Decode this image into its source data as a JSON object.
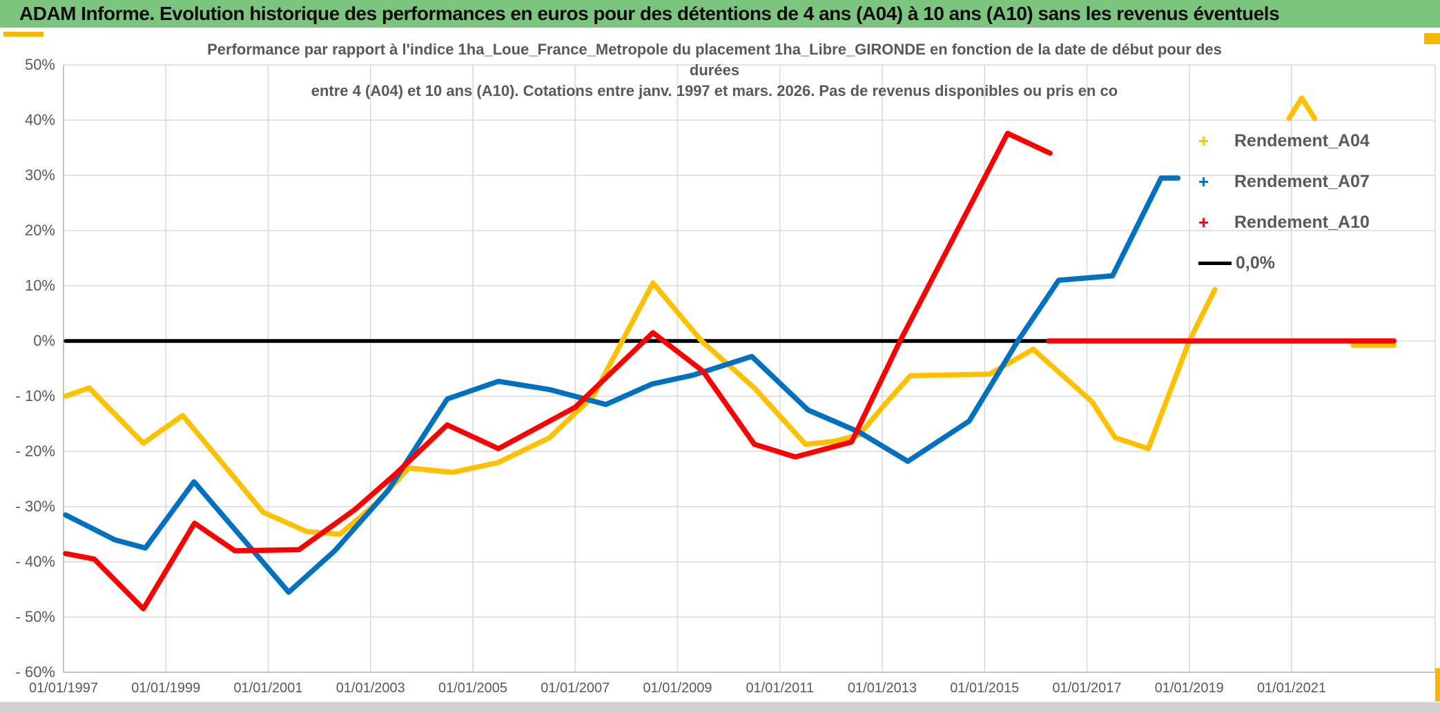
{
  "header": {
    "title": "ADAM Informe. Evolution historique des performances en euros pour des détentions de 4 ans (A04) à 10 ans (A10) sans les revenus éventuels"
  },
  "ui": {
    "header_bg": "#7cc57e",
    "text_gray": "#595959",
    "grid_color": "#d9d9d9",
    "axis_color": "#bfbfbf",
    "accent_orange": "#f5b800",
    "band_gray": "#cfcfcf"
  },
  "legend": {
    "items": [
      {
        "label": "Rendement_A04",
        "marker": "plus",
        "color": "#FFC000"
      },
      {
        "label": "Rendement_A07",
        "marker": "plus",
        "color": "#0070C0"
      },
      {
        "label": "Rendement_A10",
        "marker": "plus",
        "color": "#FF0000"
      },
      {
        "label": "0,0%",
        "marker": "line",
        "color": "#000000"
      }
    ]
  },
  "chart_data": {
    "type": "line",
    "title_lines": [
      "Performance par rapport à l'indice 1ha_Loue_France_Metropole  du placement 1ha_Libre_GIRONDE en fonction de la date de début pour des",
      "durées",
      "entre 4 (A04) et 10 ans (A10). Cotations entre janv. 1997 et mars. 2026. Pas de revenus disponibles ou pris en co"
    ],
    "xlabel": "",
    "ylabel": "",
    "x_tick_years": [
      1997,
      1999,
      2001,
      2003,
      2005,
      2007,
      2009,
      2011,
      2013,
      2015,
      2017,
      2019,
      2021
    ],
    "x_tick_labels": [
      "01/01/1997",
      "01/01/1999",
      "01/01/2001",
      "01/01/2003",
      "01/01/2005",
      "01/01/2007",
      "01/01/2009",
      "01/01/2011",
      "01/01/2013",
      "01/01/2015",
      "01/01/2017",
      "01/01/2019",
      "01/01/2021"
    ],
    "y_ticks": [
      50,
      40,
      30,
      20,
      10,
      0,
      -10,
      -20,
      -30,
      -40,
      -50,
      -60
    ],
    "y_tick_labels": [
      "50%",
      "40%",
      "30%",
      "20%",
      "10%",
      "0%",
      "- 10%",
      "- 20%",
      "- 30%",
      "- 40%",
      "- 50%",
      "- 60%"
    ],
    "x_range_years": [
      1997.0,
      2023.9
    ],
    "ylim": [
      -60,
      50
    ],
    "grid": true,
    "legend_position": "inside-right",
    "series": [
      {
        "name": "Rendement_A04",
        "color": "#FFC000",
        "draw_order": 1,
        "segments": [
          [
            [
              1997.04,
              -10
            ],
            [
              1997.5,
              -8.5
            ],
            [
              1998.56,
              -18.5
            ],
            [
              1999.33,
              -13.5
            ],
            [
              2000.9,
              -31
            ],
            [
              2001.75,
              -34.5
            ],
            [
              2002.4,
              -35
            ],
            [
              2003.1,
              -29.5
            ],
            [
              2003.75,
              -23
            ],
            [
              2004.6,
              -23.8
            ],
            [
              2005.5,
              -22
            ],
            [
              2006.5,
              -17.5
            ],
            [
              2007.35,
              -10
            ],
            [
              2008.52,
              10.5
            ],
            [
              2009.47,
              0
            ],
            [
              2010.5,
              -8.5
            ],
            [
              2011.5,
              -18.7
            ],
            [
              2012.05,
              -18.2
            ],
            [
              2012.55,
              -17
            ],
            [
              2013.05,
              -11.5
            ],
            [
              2013.55,
              -6.3
            ],
            [
              2015.1,
              -6
            ],
            [
              2015.95,
              -1.5
            ],
            [
              2017.1,
              -11
            ],
            [
              2017.55,
              -17.5
            ],
            [
              2018.2,
              -19.5
            ],
            [
              2019.0,
              0
            ],
            [
              2019.5,
              9.3
            ]
          ],
          [
            [
              2020.95,
              40.3
            ],
            [
              2021.2,
              44
            ],
            [
              2021.45,
              40.3
            ]
          ],
          [
            [
              2022.2,
              -0.8
            ],
            [
              2023.0,
              -0.8
            ]
          ]
        ]
      },
      {
        "name": "Rendement_A07",
        "color": "#0070C0",
        "draw_order": 2,
        "segments": [
          [
            [
              1997.04,
              -31.5
            ],
            [
              1998.0,
              -36
            ],
            [
              1998.6,
              -37.5
            ],
            [
              1999.55,
              -25.5
            ],
            [
              2001.4,
              -45.5
            ],
            [
              2002.3,
              -38
            ],
            [
              2003.35,
              -27
            ],
            [
              2004.5,
              -10.5
            ],
            [
              2005.5,
              -7.3
            ],
            [
              2006.5,
              -8.8
            ],
            [
              2007.6,
              -11.5
            ],
            [
              2008.5,
              -7.8
            ],
            [
              2009.3,
              -6.2
            ],
            [
              2010.45,
              -2.8
            ],
            [
              2011.55,
              -12.5
            ],
            [
              2012.55,
              -16.5
            ],
            [
              2013.5,
              -21.8
            ],
            [
              2014.7,
              -14.5
            ],
            [
              2015.65,
              0
            ],
            [
              2016.45,
              11
            ],
            [
              2017.5,
              11.8
            ],
            [
              2018.45,
              29.5
            ],
            [
              2018.78,
              29.5
            ]
          ]
        ]
      },
      {
        "name": "Rendement_A10",
        "color": "#FF0000",
        "draw_order": 3,
        "segments": [
          [
            [
              1997.04,
              -38.5
            ],
            [
              1997.6,
              -39.5
            ],
            [
              1998.56,
              -48.5
            ],
            [
              1999.56,
              -33
            ],
            [
              2000.35,
              -38
            ],
            [
              2001.6,
              -37.8
            ],
            [
              2002.7,
              -30.5
            ],
            [
              2003.5,
              -24
            ],
            [
              2004.5,
              -15.2
            ],
            [
              2005.5,
              -19.5
            ],
            [
              2007.0,
              -12
            ],
            [
              2008.52,
              1.5
            ],
            [
              2009.5,
              -5.5
            ],
            [
              2010.5,
              -18.7
            ],
            [
              2011.3,
              -21
            ],
            [
              2012.4,
              -18.3
            ],
            [
              2013.35,
              0
            ],
            [
              2015.45,
              37.6
            ],
            [
              2016.28,
              34
            ]
          ],
          [
            [
              2016.25,
              0
            ],
            [
              2023.0,
              0
            ]
          ]
        ]
      },
      {
        "name": "0,0%",
        "color": "#000000",
        "draw_order": 0,
        "segments": [
          [
            [
              1997.04,
              0
            ],
            [
              2016.3,
              0
            ]
          ]
        ]
      }
    ]
  }
}
